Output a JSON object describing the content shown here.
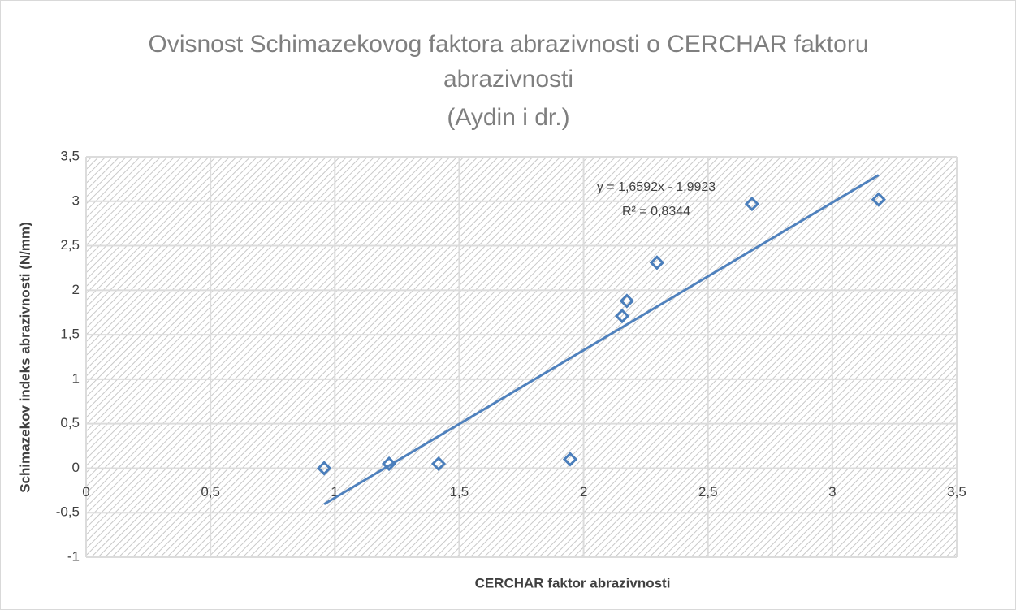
{
  "chart_data": {
    "type": "scatter",
    "title": [
      "Ovisnost Schimazekovog faktora abrazivnosti o CERCHAR faktoru",
      "abrazivnosti",
      "(Aydin i dr.)"
    ],
    "x_label": "CERCHAR faktor abrazivnosti",
    "y_label": "Schimazekov indeks abrazivnosti (N/mm)",
    "series": [
      {
        "color": "#4a7ebb",
        "x": [
          0.957,
          1.218,
          1.417,
          1.946,
          2.155,
          2.174,
          2.295,
          2.677,
          3.186
        ],
        "values": [
          0,
          0.05,
          0.05,
          0.1,
          1.71,
          1.88,
          2.31,
          2.97,
          3.02
        ]
      }
    ],
    "trendline": {
      "slope": 1.6592,
      "intercept": -1.9923,
      "color": "#4f81bd",
      "label": "y = 1,6592x - 1,9923",
      "r2_label": "R² = 0,8344"
    },
    "xlim": [
      0,
      3.5
    ],
    "xticks": [
      0,
      {
        "value": 0.5,
        "label": "0,5"
      },
      1,
      {
        "value": 1.5,
        "label": "1,5"
      },
      2,
      {
        "value": 2.5,
        "label": "2,5"
      },
      3,
      {
        "value": 3.5,
        "label": "3,5"
      }
    ],
    "ylim": [
      -1,
      3.5
    ],
    "yticks": [
      -1,
      {
        "value": -0.5,
        "label": "-0,5"
      },
      0,
      {
        "value": 0.5,
        "label": "0,5"
      },
      1,
      {
        "value": 1.5,
        "label": "1,5"
      },
      2,
      {
        "value": 2.5,
        "label": "2,5"
      },
      3,
      {
        "value": 3.5,
        "label": "3,5"
      }
    ],
    "grid": true
  }
}
